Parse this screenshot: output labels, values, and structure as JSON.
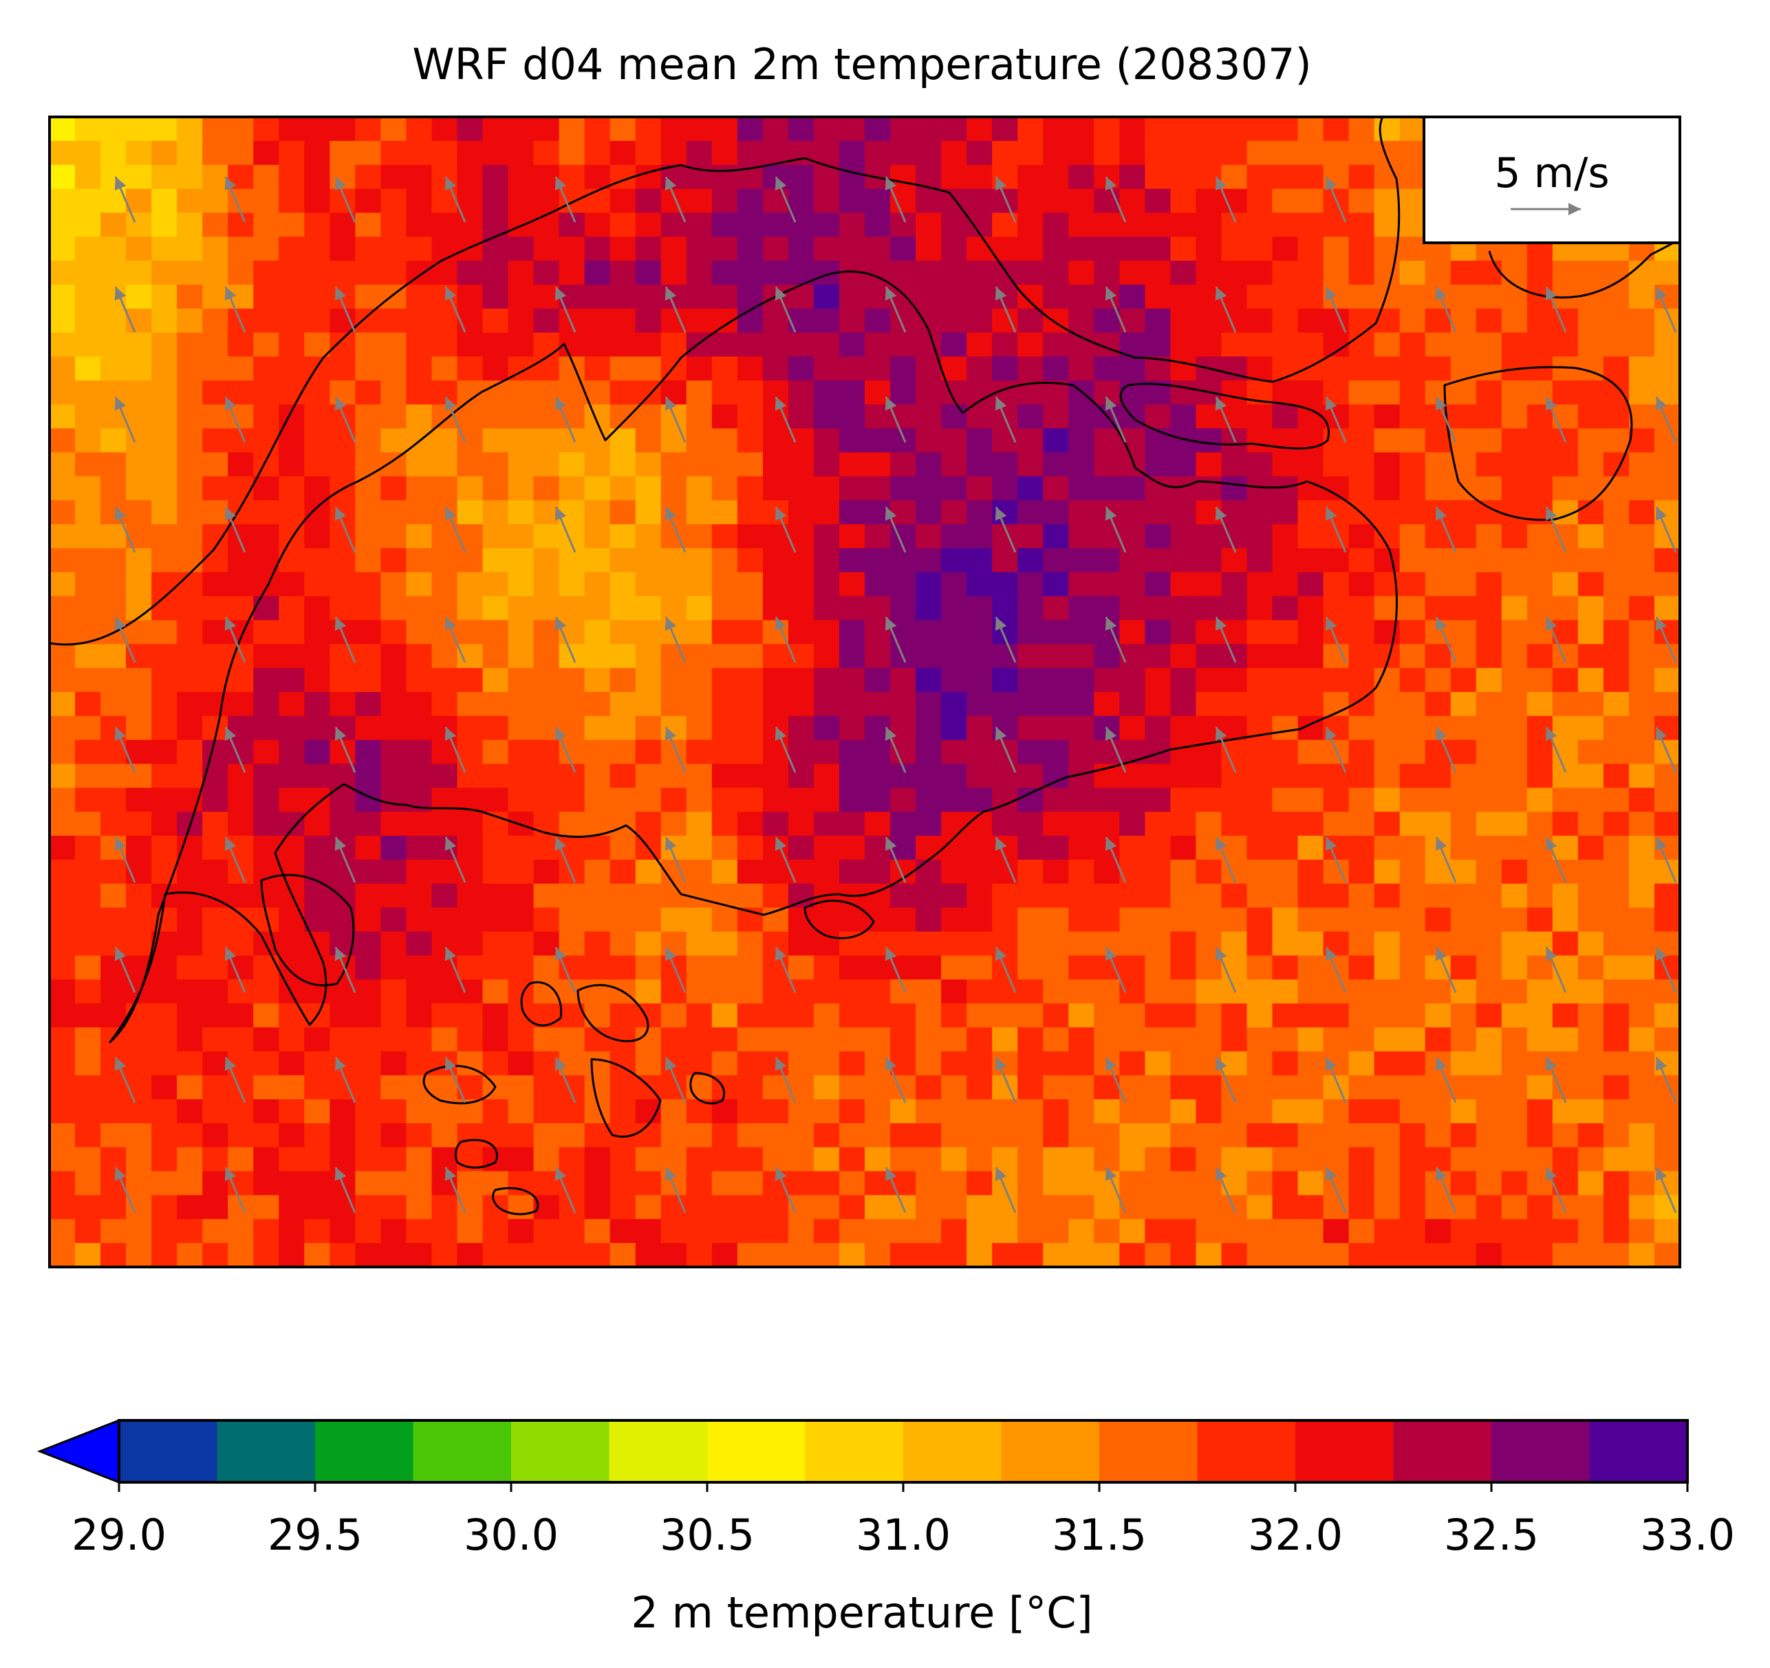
{
  "chart_data": {
    "type": "heatmap",
    "title": "WRF d04 mean 2m temperature (208307)",
    "wind_legend": {
      "label": "5 m/s",
      "arrow_color": "#808080"
    },
    "colorbar": {
      "label": "2 m temperature [°C]",
      "min": 29.0,
      "max": 33.0,
      "step": 0.25,
      "extend": "min",
      "tick_values": [
        29.0,
        29.5,
        30.0,
        30.5,
        31.0,
        31.5,
        32.0,
        32.5,
        33.0
      ],
      "tick_labels": [
        "29.0",
        "29.5",
        "30.0",
        "30.5",
        "31.0",
        "31.5",
        "32.0",
        "32.5",
        "33.0"
      ],
      "under_color": "#0000ff",
      "colors": [
        "#0a37a3",
        "#006e6e",
        "#03a01e",
        "#4bc708",
        "#91dc00",
        "#e0f000",
        "#fff000",
        "#ffd200",
        "#ffb400",
        "#ff9600",
        "#ff6400",
        "#ff2800",
        "#ee0a0a",
        "#b4003c",
        "#80006e",
        "#500096"
      ]
    },
    "wind": {
      "u_ms": -1.4,
      "v_ms": 3.3
    },
    "temperature_grid_coarse": [
      [
        30.9,
        31.1,
        32.0,
        31.8,
        32.1,
        31.7,
        32.2,
        32.5,
        32.3,
        32.1,
        32.0,
        31.8,
        31.7,
        31.0,
        31.2,
        31.0
      ],
      [
        31.0,
        31.2,
        31.8,
        31.9,
        32.3,
        32.4,
        32.5,
        32.6,
        32.3,
        32.2,
        32.4,
        32.0,
        31.8,
        31.7,
        31.8,
        31.4
      ],
      [
        31.3,
        31.5,
        32.0,
        31.6,
        31.4,
        31.3,
        31.5,
        32.3,
        32.5,
        32.6,
        32.5,
        32.3,
        32.0,
        31.7,
        31.8,
        31.6
      ],
      [
        31.5,
        31.7,
        32.1,
        31.8,
        31.3,
        31.2,
        31.4,
        32.2,
        32.6,
        32.7,
        32.4,
        32.2,
        32.0,
        31.7,
        31.6,
        31.7
      ],
      [
        31.7,
        32.0,
        32.3,
        32.5,
        32.0,
        31.6,
        31.8,
        32.4,
        32.6,
        32.5,
        32.3,
        31.9,
        31.7,
        31.6,
        31.6,
        31.6
      ],
      [
        31.9,
        32.0,
        32.0,
        32.3,
        32.0,
        31.7,
        31.4,
        32.1,
        32.1,
        31.8,
        31.7,
        31.6,
        31.6,
        31.6,
        31.6,
        31.6
      ],
      [
        31.8,
        31.9,
        31.9,
        31.8,
        31.8,
        31.8,
        31.8,
        31.7,
        31.6,
        31.6,
        31.6,
        31.6,
        31.6,
        31.6,
        31.6,
        31.6
      ],
      [
        31.6,
        31.8,
        31.9,
        31.9,
        31.9,
        31.9,
        31.9,
        31.7,
        31.6,
        31.6,
        31.6,
        31.6,
        31.9,
        32.0,
        31.9,
        31.4
      ]
    ]
  }
}
